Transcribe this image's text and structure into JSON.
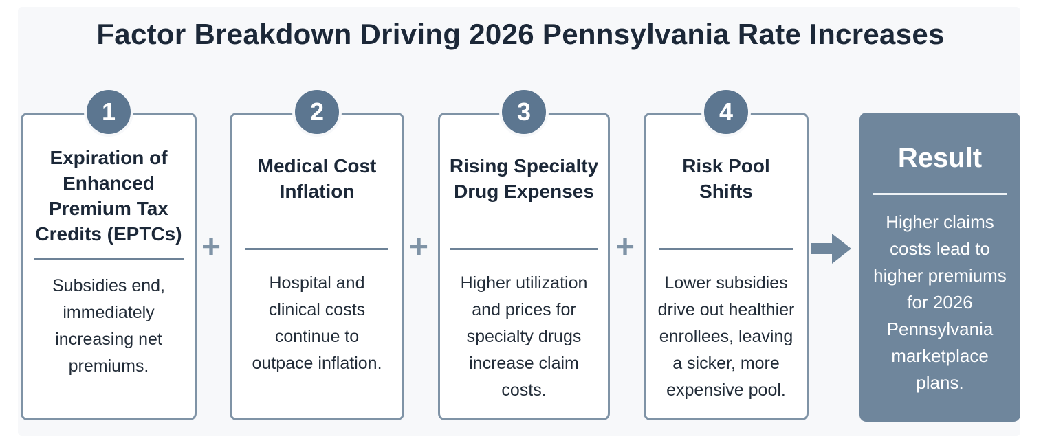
{
  "title": "Factor Breakdown Driving 2026 Pennsylvania Rate Increases",
  "factors": [
    {
      "number": "1",
      "title": "Expiration of\nEnhanced\nPremium Tax\nCredits (EPTCs)",
      "description": "Subsidies end,\nimmediately\nincreasing net\npremiums."
    },
    {
      "number": "2",
      "title": "Medical Cost\nInflation",
      "description": "Hospital and\nclinical costs\ncontinue to\noutpace inflation."
    },
    {
      "number": "3",
      "title": "Rising Specialty\nDrug Expenses",
      "description": "Higher utilization\nand prices for\nspecialty drugs\nincrease claim\ncosts."
    },
    {
      "number": "4",
      "title": "Risk Pool\nShifts",
      "description": "Lower subsidies\ndrive out healthier\nenrollees, leaving\na sicker, more\nexpensive pool."
    }
  ],
  "operators": {
    "plus": "+"
  },
  "result": {
    "title": "Result",
    "description": "Higher claims\ncosts lead to\nhigher premiums\nfor 2026\nPennsylvania\nmarketplace\nplans."
  },
  "colors": {
    "accent": "#5c7690",
    "result_bg": "#6f869c",
    "border": "#7f93a6"
  },
  "icons": {
    "arrow": "arrow-right-icon",
    "plus": "plus-icon"
  }
}
